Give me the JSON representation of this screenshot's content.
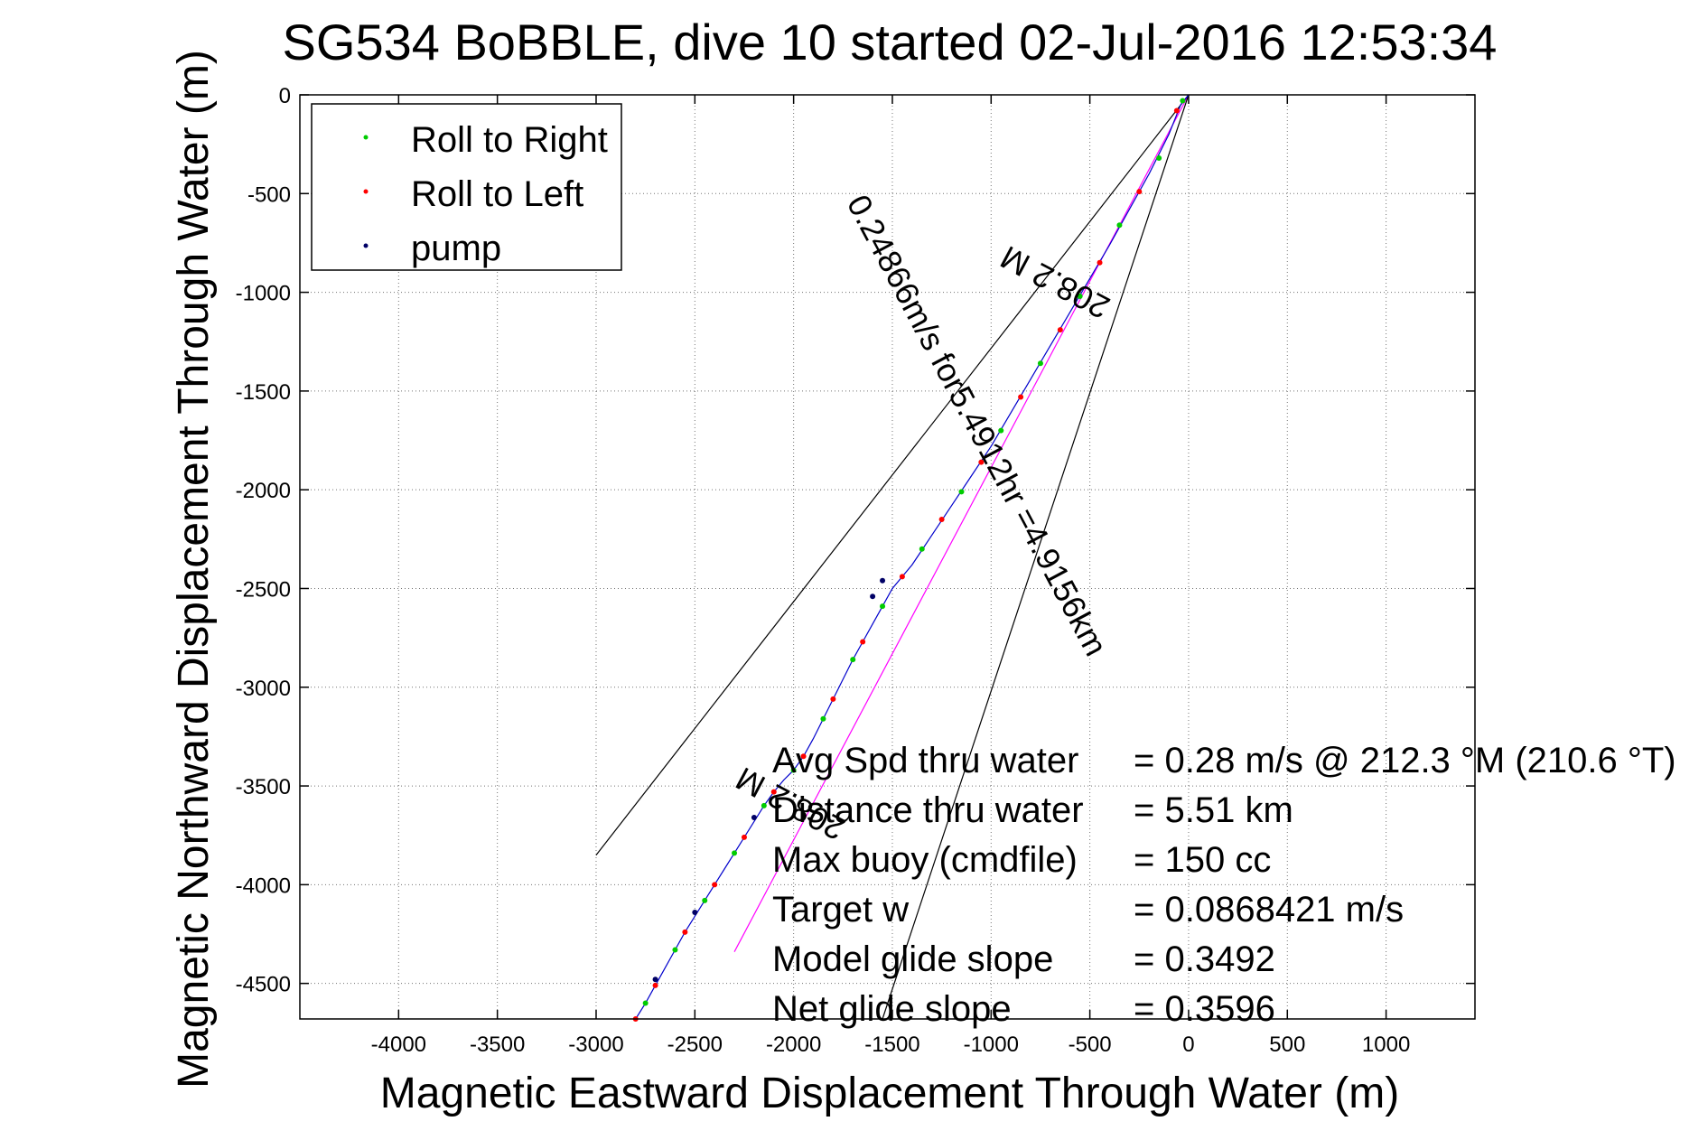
{
  "chart_data": {
    "type": "scatter",
    "title": "SG534 BoBBLE, dive 10 started 02-Jul-2016 12:53:34",
    "xlabel": "Magnetic Eastward Displacement Through Water (m)",
    "ylabel": "Magnetic Northward Displacement Through Water (m)",
    "xlim": [
      -4500,
      1450
    ],
    "ylim": [
      -4680,
      0
    ],
    "xticks": [
      -4000,
      -3500,
      -3000,
      -2500,
      -2000,
      -1500,
      -1000,
      -500,
      0,
      500,
      1000
    ],
    "yticks": [
      0,
      -500,
      -1000,
      -1500,
      -2000,
      -2500,
      -3000,
      -3500,
      -4000,
      -4500
    ],
    "grid": true,
    "legend_position": "top-left",
    "legend": [
      {
        "label": "Roll to Right",
        "color": "#00cc00"
      },
      {
        "label": "Roll to Left",
        "color": "#ff0000"
      },
      {
        "label": "pump",
        "color": "#000066"
      }
    ],
    "track": {
      "color": "#0000cc",
      "x": [
        0,
        -40,
        -100,
        -200,
        -300,
        -400,
        -500,
        -600,
        -700,
        -800,
        -900,
        -1000,
        -1100,
        -1200,
        -1300,
        -1400,
        -1500,
        -1550,
        -1600,
        -1650,
        -1700,
        -1750,
        -1800,
        -1850,
        -1900,
        -1950,
        -2000,
        -2050,
        -2100,
        -2150,
        -2200,
        -2250,
        -2300,
        -2350,
        -2400,
        -2450,
        -2500,
        -2550,
        -2600,
        -2650,
        -2700,
        -2750,
        -2800
      ],
      "y": [
        0,
        -50,
        -200,
        -400,
        -580,
        -760,
        -930,
        -1100,
        -1270,
        -1440,
        -1610,
        -1780,
        -1930,
        -2080,
        -2230,
        -2380,
        -2500,
        -2590,
        -2680,
        -2770,
        -2860,
        -2960,
        -3060,
        -3160,
        -3260,
        -3350,
        -3420,
        -3470,
        -3530,
        -3600,
        -3680,
        -3760,
        -3840,
        -3920,
        -4000,
        -4080,
        -4160,
        -4240,
        -4330,
        -4420,
        -4510,
        -4600,
        -4680
      ]
    },
    "series": [
      {
        "name": "Roll to Right",
        "color": "#00cc00",
        "x": [
          -30,
          -150,
          -350,
          -550,
          -750,
          -950,
          -1150,
          -1350,
          -1550,
          -1700,
          -1850,
          -2000,
          -2150,
          -2300,
          -2450,
          -2600,
          -2750
        ],
        "y": [
          -30,
          -320,
          -660,
          -1020,
          -1360,
          -1700,
          -2010,
          -2300,
          -2590,
          -2860,
          -3160,
          -3420,
          -3600,
          -3840,
          -4080,
          -4330,
          -4600
        ]
      },
      {
        "name": "Roll to Left",
        "color": "#ff0000",
        "x": [
          -60,
          -250,
          -450,
          -650,
          -850,
          -1050,
          -1250,
          -1450,
          -1650,
          -1800,
          -1950,
          -2100,
          -2250,
          -2400,
          -2550,
          -2700,
          -2800
        ],
        "y": [
          -80,
          -490,
          -850,
          -1190,
          -1530,
          -1860,
          -2150,
          -2440,
          -2770,
          -3060,
          -3350,
          -3530,
          -3760,
          -4000,
          -4240,
          -4510,
          -4680
        ]
      },
      {
        "name": "pump",
        "color": "#000066",
        "x": [
          -1550,
          -1600,
          -2200,
          -2500,
          -2700
        ],
        "y": [
          -2460,
          -2540,
          -3660,
          -4140,
          -4480
        ]
      }
    ],
    "lines": [
      {
        "name": "",
        "color": "#ff00ff",
        "x": [
          0,
          -2300
        ],
        "y": [
          0,
          -4340
        ]
      },
      {
        "name": "",
        "color": "#000000",
        "x": [
          0,
          -3000
        ],
        "y": [
          0,
          -3850
        ]
      },
      {
        "name": "",
        "color": "#000000",
        "x": [
          0,
          -1550
        ],
        "y": [
          0,
          -4680
        ]
      }
    ],
    "rotated_labels": [
      {
        "text": "0.24866m/s for5.4912hr =4.9156km",
        "x": -1120,
        "y": -1700,
        "angle": 62
      },
      {
        "text": "208.2 M",
        "x": -650,
        "y": -900,
        "angle": 208
      },
      {
        "text": "208.2 M",
        "x": -1990,
        "y": -3540,
        "angle": 208
      }
    ],
    "annotations": [
      {
        "label": "Avg Spd thru water",
        "value": "=  0.28 m/s @ 212.3 °M (210.6 °T)"
      },
      {
        "label": "Distance thru water",
        "value": "=  5.51 km"
      },
      {
        "label": "Max buoy (cmdfile)",
        "value": "= 150 cc"
      },
      {
        "label": "Target w",
        "value": "= 0.0868421 m/s"
      },
      {
        "label": "Model glide slope",
        "value": "= 0.3492"
      },
      {
        "label": "Net glide slope",
        "value": "= 0.3596"
      }
    ]
  }
}
